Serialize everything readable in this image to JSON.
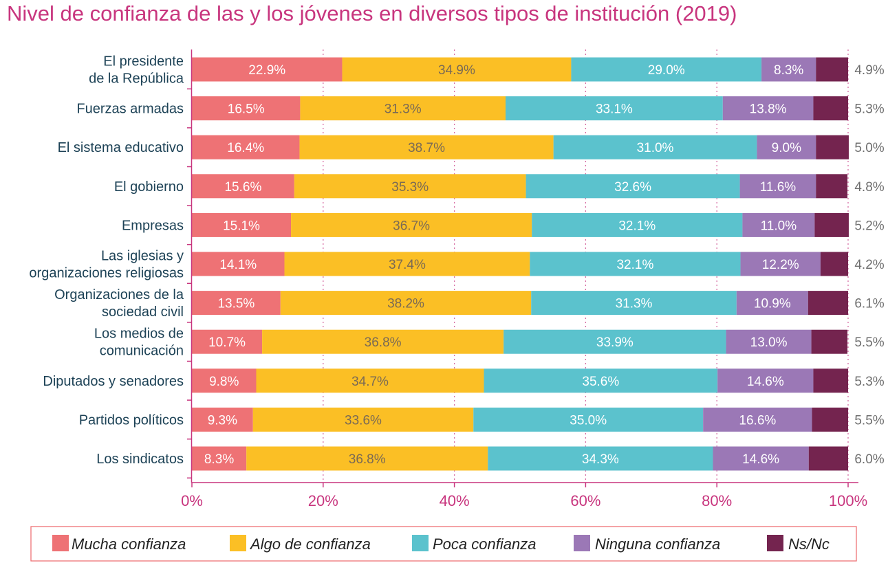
{
  "chart_data": {
    "type": "bar",
    "orientation": "horizontal",
    "stacked": true,
    "title": "Nivel de confianza de las y los jóvenes en diversos tipos de institución (2019)",
    "categories": [
      [
        "El presidente",
        "de la República"
      ],
      [
        "Fuerzas armadas"
      ],
      [
        "El sistema educativo"
      ],
      [
        "El gobierno"
      ],
      [
        "Empresas"
      ],
      [
        "Las iglesias y",
        "organizaciones religiosas"
      ],
      [
        "Organizaciones de la",
        "sociedad civil"
      ],
      [
        "Los medios de",
        "comunicación"
      ],
      [
        "Diputados y senadores"
      ],
      [
        "Partidos políticos"
      ],
      [
        "Los sindicatos"
      ]
    ],
    "series": [
      {
        "name": "Mucha confianza",
        "color": "#ee7275",
        "label_color": "#ffffff",
        "values": [
          22.9,
          16.5,
          16.4,
          15.6,
          15.1,
          14.1,
          13.5,
          10.7,
          9.8,
          9.3,
          8.3
        ],
        "labels": [
          "22.9%",
          "16.5%",
          "16.4%",
          "15.6%",
          "15.1%",
          "14.1%",
          "13.5%",
          "10.7%",
          "9.8%",
          "9.3%",
          "8.3%"
        ]
      },
      {
        "name": "Algo de confianza",
        "color": "#fbbf25",
        "label_color": "#7a6a55",
        "values": [
          34.9,
          31.3,
          38.7,
          35.3,
          36.7,
          37.4,
          38.2,
          36.8,
          34.7,
          33.6,
          36.8
        ],
        "labels": [
          "34.9%",
          "31.3%",
          "38.7%",
          "35.3%",
          "36.7%",
          "37.4%",
          "38.2%",
          "36.8%",
          "34.7%",
          "33.6%",
          "36.8%"
        ]
      },
      {
        "name": "Poca confianza",
        "color": "#5bc2cd",
        "label_color": "#ffffff",
        "values": [
          29.0,
          33.1,
          31.0,
          32.6,
          32.1,
          32.1,
          31.3,
          33.9,
          35.6,
          35.0,
          34.3
        ],
        "labels": [
          "29.0%",
          "33.1%",
          "31.0%",
          "32.6%",
          "32.1%",
          "32.1%",
          "31.3%",
          "33.9%",
          "35.6%",
          "35.0%",
          "34.3%"
        ]
      },
      {
        "name": "Ninguna confianza",
        "color": "#9b78b6",
        "label_color": "#ffffff",
        "values": [
          8.3,
          13.8,
          9.0,
          11.6,
          11.0,
          12.2,
          10.9,
          13.0,
          14.6,
          16.6,
          14.6
        ],
        "labels": [
          "8.3%",
          "13.8%",
          "9.0%",
          "11.6%",
          "11.0%",
          "12.2%",
          "10.9%",
          "13.0%",
          "14.6%",
          "16.6%",
          "14.6%"
        ]
      },
      {
        "name": "Ns/Nc",
        "color": "#74244f",
        "label_color": "#6f6f6f",
        "values": [
          4.9,
          5.3,
          5.0,
          4.8,
          5.2,
          4.2,
          6.1,
          5.5,
          5.3,
          5.5,
          6.0
        ],
        "labels": [
          "4.9%",
          "5.3%",
          "5.0%",
          "4.8%",
          "5.2%",
          "4.2%",
          "6.1%",
          "5.5%",
          "5.3%",
          "5.5%",
          "6.0%"
        ]
      }
    ],
    "x_ticks": [
      "0%",
      "20%",
      "40%",
      "60%",
      "80%",
      "100%"
    ],
    "xlim": [
      0,
      100
    ],
    "grid": "vertical dotted",
    "legend_position": "bottom",
    "colors": {
      "title": "#c8357e",
      "axis": "#c8357e",
      "grid": "#d76ca3",
      "category_text": "#1d4256",
      "legend_border": "#ee7275"
    }
  }
}
